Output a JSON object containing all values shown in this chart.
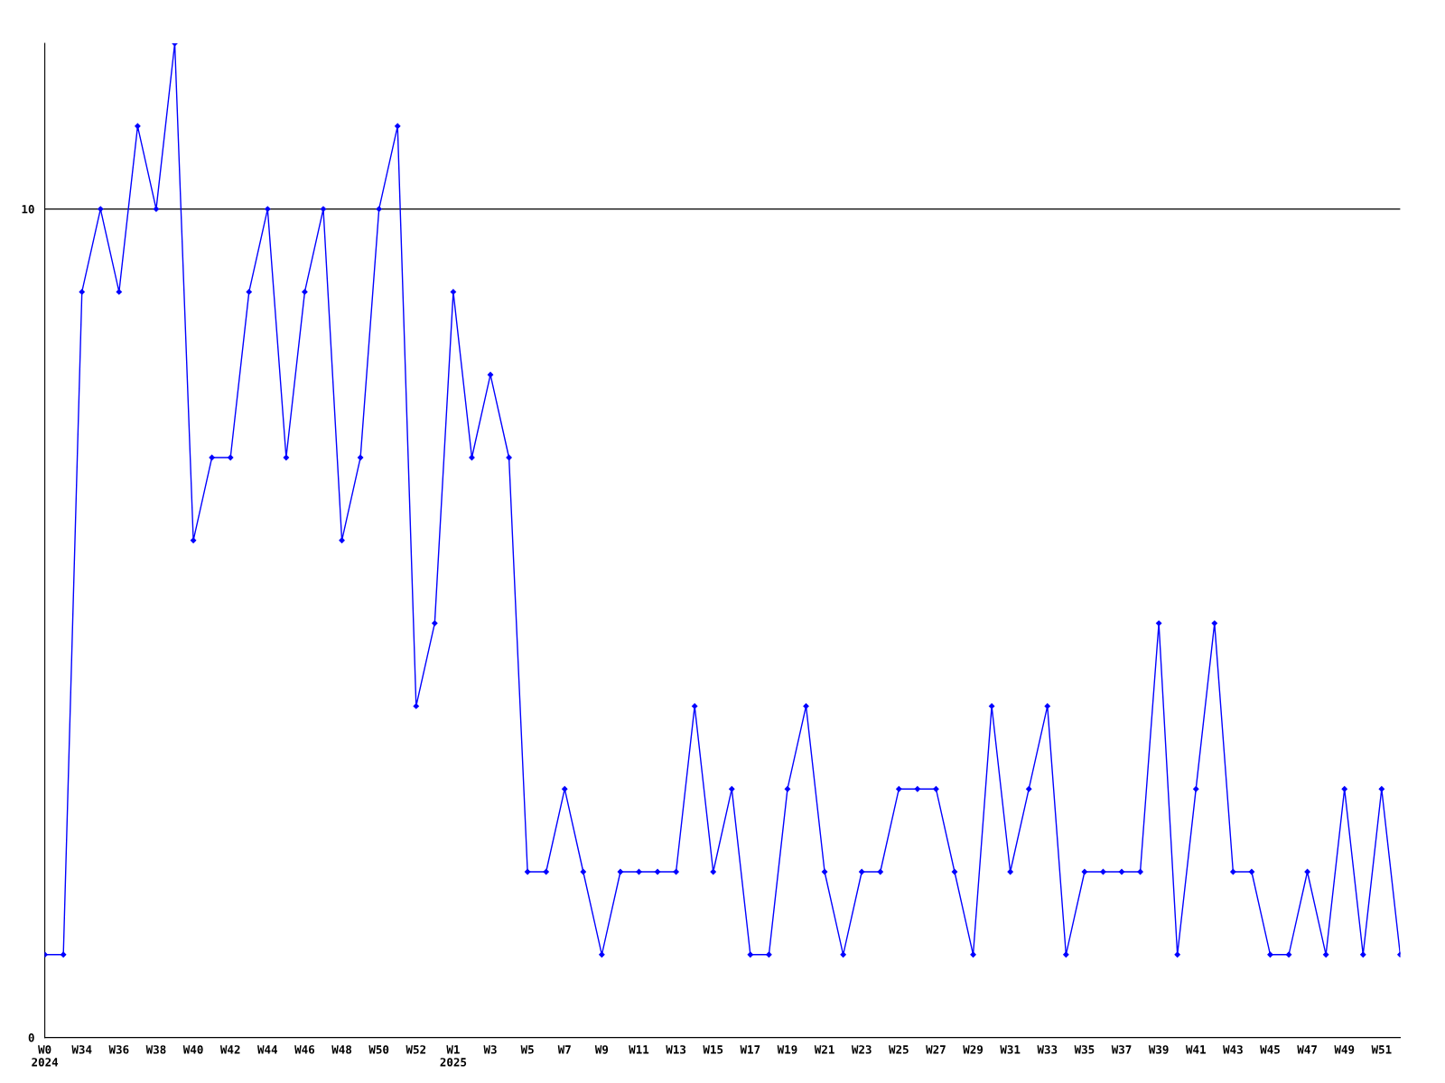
{
  "chart_data": {
    "type": "line",
    "categories": [
      "W0\n2024",
      null,
      "W34",
      null,
      "W36",
      null,
      "W38",
      null,
      "W40",
      null,
      "W42",
      null,
      "W44",
      null,
      "W46",
      null,
      "W48",
      null,
      "W50",
      null,
      "W52",
      null,
      "W1\n2025",
      null,
      "W3",
      null,
      "W5",
      null,
      "W7",
      null,
      "W9",
      null,
      "W11",
      null,
      "W13",
      null,
      "W15",
      null,
      "W17",
      null,
      "W19",
      null,
      "W21",
      null,
      "W23",
      null,
      "W25",
      null,
      "W27",
      null,
      "W29",
      null,
      "W31",
      null,
      "W33",
      null,
      "W35",
      null,
      "W37",
      null,
      "W39",
      null,
      "W41",
      null,
      "W43",
      null,
      "W45",
      null,
      "W47",
      null,
      "W49",
      null,
      "W51",
      null
    ],
    "series": [
      {
        "color": "#0000ff",
        "values": [
          1,
          1,
          9,
          10,
          9,
          11,
          10,
          12,
          6,
          7,
          7,
          9,
          10,
          7,
          9,
          10,
          6,
          7,
          10,
          11,
          4,
          5,
          9,
          7,
          8,
          7,
          2,
          2,
          3,
          2,
          1,
          2,
          2,
          2,
          2,
          4,
          2,
          3,
          1,
          1,
          3,
          4,
          2,
          1,
          2,
          2,
          3,
          3,
          3,
          2,
          1,
          4,
          2,
          3,
          4,
          1,
          2,
          2,
          2,
          2,
          5,
          1,
          3,
          5,
          2,
          2,
          1,
          1,
          2,
          1,
          3,
          1,
          3,
          1
        ]
      }
    ],
    "ylim": [
      0,
      12
    ],
    "yticks": [
      0,
      10
    ],
    "grid": "y",
    "marker": "diamond",
    "line_style": "solid"
  }
}
